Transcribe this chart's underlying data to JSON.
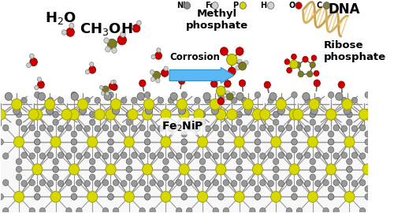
{
  "background_color": "#ffffff",
  "legend_items": [
    {
      "label": "Ni",
      "color": "#888888"
    },
    {
      "label": "Fe",
      "color": "#c8c8c8"
    },
    {
      "label": "P",
      "color": "#d4d400"
    },
    {
      "label": "H",
      "color": "#d8d8d8"
    },
    {
      "label": "O",
      "color": "#cc0000"
    },
    {
      "label": "C",
      "color": "#808040"
    }
  ],
  "labels": {
    "h2o": "H₂O",
    "ch3oh": "CH₃OH",
    "corrosion": "Corrosion",
    "methyl_phosphate": "Methyl\nphosphate",
    "ribose_phosphate": "Ribose\nphosphate",
    "fe2nip": "Fe₂NiP",
    "dna": "DNA"
  },
  "arrow_color": "#5bb8f5",
  "surface_yellow": "#d8d800",
  "surface_gray": "#999999",
  "O_col": "#cc0000",
  "H_col": "#d0d0d0",
  "C_col": "#7a7a20",
  "P_col": "#d0d000",
  "figsize": [
    5.0,
    2.7
  ],
  "dpi": 100
}
